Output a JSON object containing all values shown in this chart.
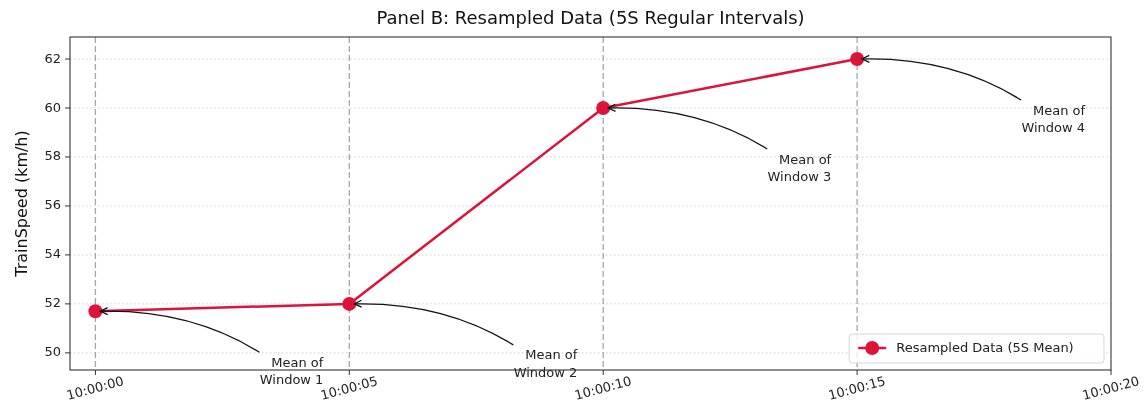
{
  "chart_data": {
    "type": "line",
    "title": "Panel B: Resampled Data (5S Regular Intervals)",
    "ylabel": "TrainSpeed (km/h)",
    "x": [
      10,
      10.001389,
      10.002778,
      10.004167
    ],
    "series": [
      {
        "name": "Resampled Data (5S Mean)",
        "color": "#dc143c",
        "values": [
          51.7,
          52.0,
          60.0,
          62.0
        ]
      }
    ],
    "xlim": [
      9.999861,
      10.005556
    ],
    "xticks": [
      {
        "value": 10,
        "label": "10:00:00"
      },
      {
        "value": 10.001389,
        "label": "10:00:05"
      },
      {
        "value": 10.002778,
        "label": "10:00:10"
      },
      {
        "value": 10.004167,
        "label": "10:00:15"
      },
      {
        "value": 10.005556,
        "label": "10:00:20"
      }
    ],
    "ylim": [
      49.3,
      62.9
    ],
    "yticks": [
      50,
      52,
      54,
      56,
      58,
      60,
      62
    ],
    "grid": "y",
    "legend": "bottom right",
    "marker": "circle",
    "line_style": "solid",
    "ref_lines": [
      {
        "axis": "x",
        "value": 10,
        "color": "#a6a6a6",
        "line_style": "dashed"
      },
      {
        "axis": "x",
        "value": 10.001389,
        "color": "#a6a6a6",
        "line_style": "dashed"
      },
      {
        "axis": "x",
        "value": 10.002778,
        "color": "#a6a6a6",
        "line_style": "dashed"
      },
      {
        "axis": "x",
        "value": 10.004167,
        "color": "#a6a6a6",
        "line_style": "dashed"
      }
    ],
    "annotations": [
      {
        "text": "Mean of\nWindow 1",
        "x": 10,
        "y": 51.7
      },
      {
        "text": "Mean of\nWindow 2",
        "x": 10.001389,
        "y": 52.0
      },
      {
        "text": "Mean of\nWindow 3",
        "x": 10.002778,
        "y": 60.0
      },
      {
        "text": "Mean of\nWindow 4",
        "x": 10.004167,
        "y": 62.0
      }
    ]
  }
}
